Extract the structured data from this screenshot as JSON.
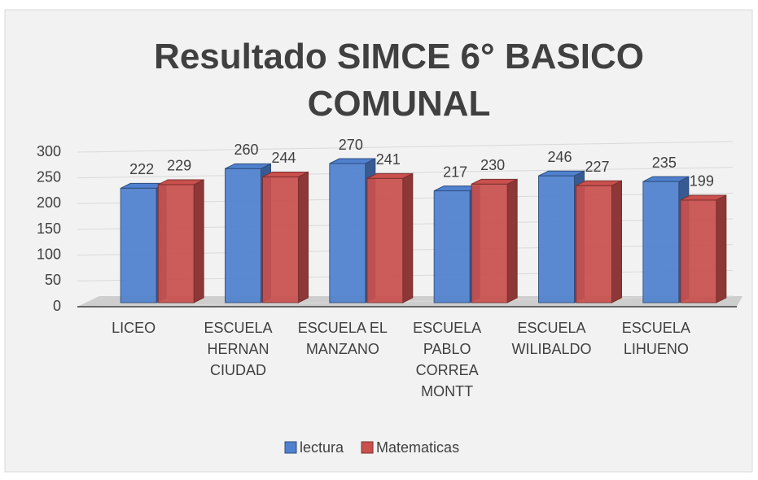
{
  "chart_data": {
    "type": "bar3d",
    "title": "Resultado SIMCE 6° BASICO COMUNAL",
    "categories": [
      "LICEO",
      "ESCUELA HERNAN CIUDAD",
      "ESCUELA EL MANZANO",
      "ESCUELA PABLO CORREA MONTT",
      "ESCUELA WILIBALDO",
      "ESCUELA LIHUENO"
    ],
    "series": [
      {
        "name": "lectura",
        "color": "#4f81cf",
        "values": [
          222,
          260,
          270,
          217,
          246,
          235
        ]
      },
      {
        "name": "Matematicas",
        "color": "#c9504d",
        "values": [
          229,
          244,
          241,
          230,
          227,
          199
        ]
      }
    ],
    "ylim": [
      0,
      300
    ],
    "yticks": [
      0,
      50,
      100,
      150,
      200,
      250,
      300
    ],
    "grid": true,
    "legend": "bottom"
  }
}
